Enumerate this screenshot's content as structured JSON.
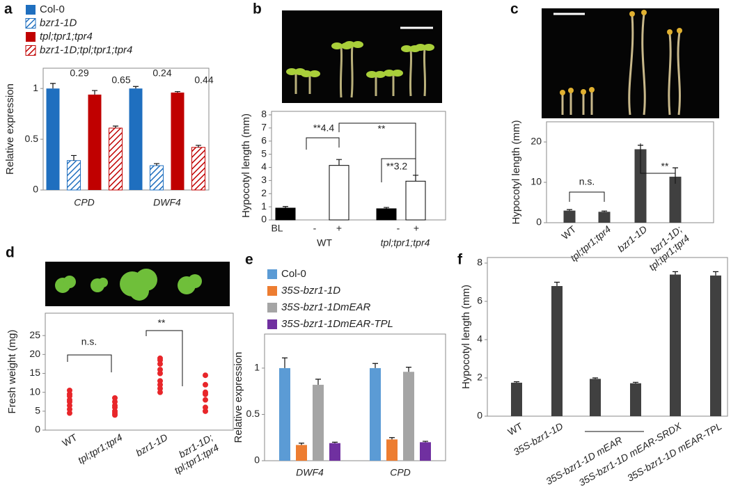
{
  "chart_data": [
    {
      "panel": "a",
      "type": "bar",
      "y_label": "Relative expression",
      "categories": [
        "CPD",
        "DWF4"
      ],
      "series": [
        {
          "name": "Col-0",
          "color": "#1f6fbf",
          "hatch": false,
          "values": [
            1.0,
            1.0
          ],
          "errors": [
            0.05,
            0.02
          ]
        },
        {
          "name": "bzr1-1D",
          "color": "#1f6fbf",
          "hatch": true,
          "values": [
            0.29,
            0.24
          ],
          "errors": [
            0.05,
            0.02
          ],
          "ratio_labels": [
            "0.29",
            "0.24"
          ]
        },
        {
          "name": "tpl;tpr1;tpr4",
          "color": "#c00000",
          "hatch": false,
          "values": [
            0.94,
            0.96
          ],
          "errors": [
            0.04,
            0.01
          ]
        },
        {
          "name": "bzr1-1D;tpl;tpr1;tpr4",
          "color": "#c00000",
          "hatch": true,
          "values": [
            0.61,
            0.42
          ],
          "errors": [
            0.02,
            0.02
          ],
          "ratio_labels": [
            "0.65",
            "0.44"
          ]
        }
      ],
      "ylim": [
        0,
        1.2
      ],
      "yticks": [
        0,
        0.5,
        1
      ]
    },
    {
      "panel": "b",
      "type": "bar",
      "y_label": "Hypocotyl length (mm)",
      "x_row_label": "BL",
      "categories": [
        "-",
        "+",
        "-",
        "+"
      ],
      "groups": [
        "WT",
        "tpl;tpr1;tpr4"
      ],
      "values": [
        0.9,
        4.15,
        0.85,
        2.95
      ],
      "errors": [
        0.12,
        0.45,
        0.1,
        0.45
      ],
      "colors": [
        "#000000",
        "#ffffff",
        "#000000",
        "#ffffff"
      ],
      "ylim": [
        0,
        8
      ],
      "yticks": [
        0,
        1,
        2,
        3,
        4,
        5,
        6,
        7,
        8
      ],
      "annotations": [
        "**4.4",
        "**",
        "**3.2"
      ]
    },
    {
      "panel": "c",
      "type": "bar",
      "y_label": "Hypocotyl length (mm)",
      "categories": [
        "WT",
        "tpl;tpr1;tpr4",
        "bzr1-1D",
        [
          "bzr1-1D;",
          "tpl;tpr1;tpr4"
        ]
      ],
      "values": [
        3.0,
        2.7,
        18.2,
        11.4
      ],
      "errors": [
        0.25,
        0.2,
        1.0,
        2.2
      ],
      "color": "#404040",
      "ylim": [
        0,
        25
      ],
      "yticks": [
        0,
        10,
        20
      ],
      "annotations": [
        "n.s.",
        "**"
      ]
    },
    {
      "panel": "d",
      "type": "scatter",
      "y_label": "Fresh weight (mg)",
      "categories": [
        "WT",
        "tpl;tpr1;tpr4",
        "bzr1-1D",
        [
          "bzr1-1D;",
          "tpl;tpr1;tpr4"
        ]
      ],
      "values": [
        [
          4.5,
          5.5,
          6.5,
          7.5,
          8,
          9,
          9.5,
          10.5
        ],
        [
          4,
          4.5,
          5,
          6,
          6.5,
          7.5,
          8.5
        ],
        [
          10,
          11,
          12,
          13,
          15,
          16,
          17.5,
          18.5,
          19
        ],
        [
          5,
          6,
          8,
          9.5,
          10,
          12,
          14.5
        ]
      ],
      "color": "#e8262a",
      "ylim": [
        0,
        30
      ],
      "yticks": [
        0,
        5,
        10,
        15,
        20,
        25
      ],
      "annotations": [
        "n.s.",
        "**"
      ]
    },
    {
      "panel": "e",
      "type": "bar",
      "y_label": "Relative expression",
      "categories": [
        "DWF4",
        "CPD"
      ],
      "series": [
        {
          "name": "Col-0",
          "color": "#5b9bd5",
          "values": [
            1.0,
            1.0
          ],
          "errors": [
            0.11,
            0.05
          ]
        },
        {
          "name": "35S-bzr1-1D",
          "color": "#ed7d31",
          "values": [
            0.17,
            0.23
          ],
          "errors": [
            0.02,
            0.02
          ]
        },
        {
          "name": "35S-bzr1-1DmEAR",
          "color": "#a5a5a5",
          "values": [
            0.82,
            0.96
          ],
          "errors": [
            0.06,
            0.05
          ]
        },
        {
          "name": "35S-bzr1-1DmEAR-TPL",
          "color": "#7030a0",
          "values": [
            0.19,
            0.2
          ],
          "errors": [
            0.01,
            0.01
          ]
        }
      ],
      "ylim": [
        0,
        1.3
      ],
      "yticks": [
        0,
        0.5,
        1
      ]
    },
    {
      "panel": "f",
      "type": "bar",
      "y_label": "Hypocotyl length (mm)",
      "categories": [
        "WT",
        "35S-bzr1-1D",
        "35S-bzr1-1D mEAR",
        null,
        "35S-bzr1-1D mEAR-SRDX",
        "35S-bzr1-1D mEAR-TPL"
      ],
      "values": [
        1.75,
        6.8,
        1.95,
        1.72,
        7.4,
        7.35
      ],
      "errors": [
        0.05,
        0.2,
        0.05,
        0.05,
        0.15,
        0.2
      ],
      "color": "#404040",
      "ylim": [
        0,
        8
      ],
      "yticks": [
        0,
        2,
        4,
        6,
        8
      ]
    }
  ]
}
